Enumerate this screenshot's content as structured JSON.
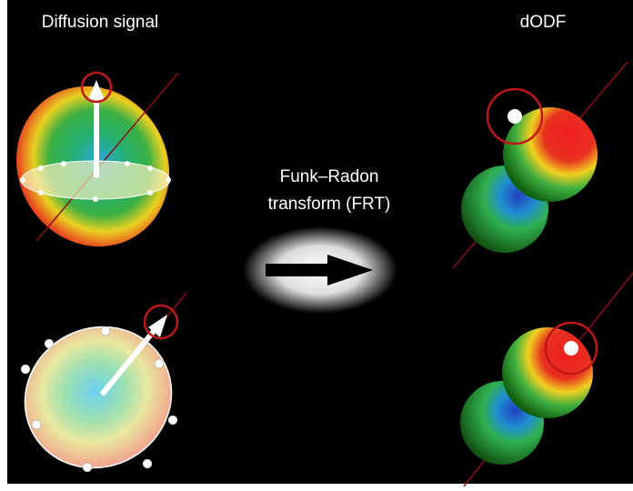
{
  "labels": {
    "left_title": "Diffusion signal",
    "right_title": "dODF",
    "transform_lines": [
      "Funk–Radon",
      "transform (FRT)"
    ]
  }
}
